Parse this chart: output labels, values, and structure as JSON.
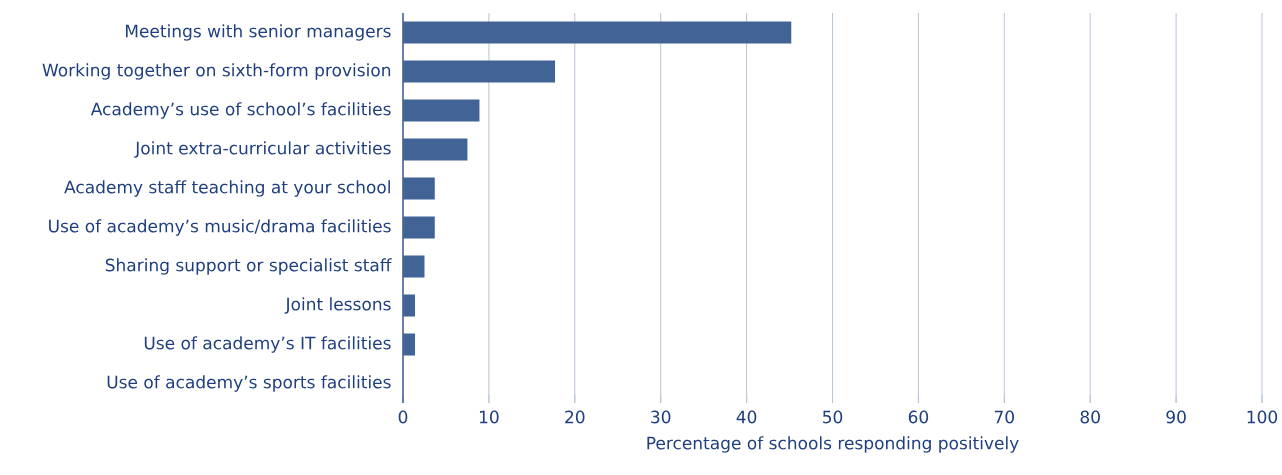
{
  "chart_data": {
    "type": "bar",
    "orientation": "horizontal",
    "xlabel": "Percentage of schools responding positively",
    "categories": [
      "Meetings with senior managers",
      "Working together on sixth-form provision",
      "Academy’s use of school’s facilities",
      "Joint extra-curricular activities",
      "Academy staff teaching at your school",
      "Use of academy’s music/drama facilities",
      "Sharing support or specialist staff",
      "Joint lessons",
      "Use of academy’s IT facilities",
      "Use of academy’s sports facilities"
    ],
    "values": [
      45.2,
      17.7,
      8.9,
      7.5,
      3.7,
      3.7,
      2.5,
      1.4,
      1.4,
      0
    ],
    "color": "#426395",
    "xlim": [
      0,
      100
    ],
    "xticks": [
      0,
      10,
      20,
      30,
      40,
      50,
      60,
      70,
      80,
      90,
      100
    ],
    "grid": "x"
  }
}
